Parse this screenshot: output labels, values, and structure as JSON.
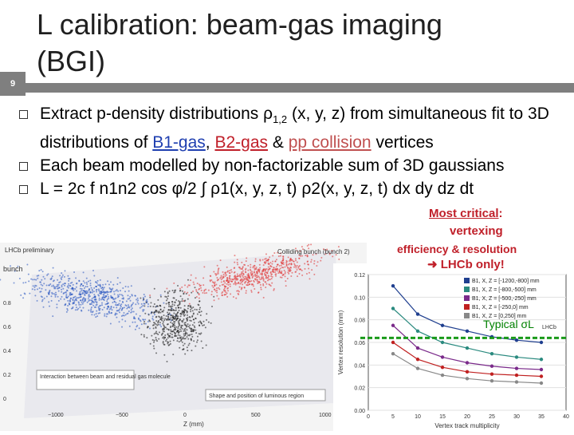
{
  "slide": {
    "number": "9",
    "title": "L calibration: beam-gas imaging (BGI)"
  },
  "bullets": {
    "b1_pre": "Extract p-density distributions ",
    "b1_rho": "ρ",
    "b1_sub": "1,2",
    "b1_mid": " (x, y, z) from simultaneous fit to 3D distributions of ",
    "b1_b1": "B1-gas",
    "b1_comma": ", ",
    "b1_b2": "B2-gas",
    "b1_amp": " & ",
    "b1_pp": "pp collision",
    "b1_end": " vertices",
    "b2": "Each beam modelled by non-factorizable sum of 3D gaussians",
    "b3": "L = 2c f n1n2 cos φ/2 ∫ ρ1(x, y, z, t) ρ2(x, y, z, t) dx dy dz dt"
  },
  "callouts": {
    "most_critical": "Most critical",
    "colon": ":",
    "vertexing": "vertexing",
    "eff_res": "efficiency & resolution",
    "lhcb_only": "LHCb only!",
    "typical": "Typical σL"
  },
  "left_fig": {
    "labels": {
      "lhcb": "LHCb preliminary",
      "bunch": "bunch",
      "bunch2": "Colliding bunch (bunch 2)",
      "interaction": "Interaction between beam and residual gas molecule",
      "shape": "Shape and position of luminous region",
      "zaxis": "Z (mm)"
    },
    "ticks": [
      "−1000",
      "−500",
      "0",
      "500",
      "1000"
    ],
    "yticks": [
      "0.8",
      "0.6",
      "0.4",
      "0.2",
      "0"
    ]
  },
  "chart_data": {
    "type": "line",
    "xlabel": "Vertex track multiplicity",
    "ylabel": "Vertex resolution (mm)",
    "xlim": [
      0,
      40
    ],
    "ylim": [
      0,
      0.12
    ],
    "xticks": [
      0,
      5,
      10,
      15,
      20,
      25,
      30,
      35,
      40
    ],
    "yticks": [
      0,
      0.02,
      0.04,
      0.06,
      0.08,
      0.1,
      0.12
    ],
    "annotation": "LHCb",
    "x": [
      5,
      10,
      15,
      20,
      25,
      30,
      35
    ],
    "series": [
      {
        "name": "B1, X, Z = [-1200,-800] mm",
        "color": "#1f3f8f",
        "values": [
          0.11,
          0.085,
          0.075,
          0.07,
          0.065,
          0.062,
          0.06
        ]
      },
      {
        "name": "B1, X, Z = [-800,-500] mm",
        "color": "#2a8a7f",
        "values": [
          0.09,
          0.07,
          0.06,
          0.055,
          0.05,
          0.047,
          0.045
        ]
      },
      {
        "name": "B1, X, Z = [-500,-250] mm",
        "color": "#7a2a8a",
        "values": [
          0.075,
          0.055,
          0.047,
          0.042,
          0.039,
          0.037,
          0.036
        ]
      },
      {
        "name": "B1, X, Z = [-250,0] mm",
        "color": "#c02020",
        "values": [
          0.06,
          0.045,
          0.038,
          0.034,
          0.032,
          0.031,
          0.03
        ]
      },
      {
        "name": "B1, X, Z = [0,250] mm",
        "color": "#888888",
        "values": [
          0.05,
          0.037,
          0.031,
          0.028,
          0.026,
          0.025,
          0.024
        ]
      }
    ],
    "typical_line_y": 0.064
  }
}
